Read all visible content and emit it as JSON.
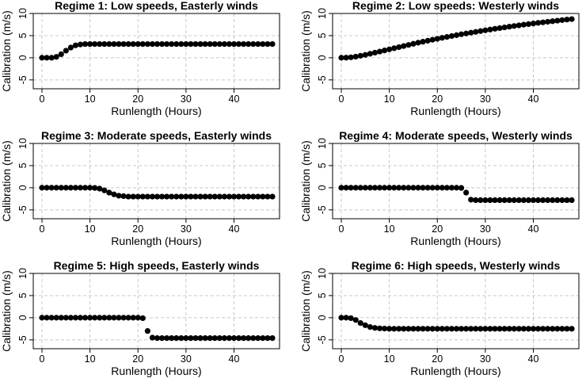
{
  "chart_data": [
    {
      "type": "scatter",
      "title": "Regime 1: Low speeds, Easterly winds",
      "xlabel": "Runlength (Hours)",
      "ylabel": "Calibration (m/s)",
      "xlim": [
        0,
        48
      ],
      "ylim": [
        -7,
        10
      ],
      "xticks": [
        0,
        10,
        20,
        30,
        40
      ],
      "yticks": [
        -5,
        0,
        5,
        10
      ],
      "grid": true,
      "x": [
        0,
        1,
        2,
        3,
        4,
        5,
        6,
        7,
        8,
        9,
        10,
        11,
        12,
        13,
        14,
        15,
        16,
        17,
        18,
        19,
        20,
        21,
        22,
        23,
        24,
        25,
        26,
        27,
        28,
        29,
        30,
        31,
        32,
        33,
        34,
        35,
        36,
        37,
        38,
        39,
        40,
        41,
        42,
        43,
        44,
        45,
        46,
        47,
        48
      ],
      "y": [
        0,
        0,
        0,
        0.2,
        0.8,
        1.6,
        2.3,
        2.8,
        3.0,
        3.1,
        3.1,
        3.1,
        3.1,
        3.1,
        3.1,
        3.1,
        3.1,
        3.1,
        3.1,
        3.1,
        3.1,
        3.1,
        3.1,
        3.1,
        3.1,
        3.1,
        3.1,
        3.1,
        3.1,
        3.1,
        3.1,
        3.1,
        3.1,
        3.1,
        3.1,
        3.1,
        3.1,
        3.1,
        3.1,
        3.1,
        3.1,
        3.1,
        3.1,
        3.1,
        3.1,
        3.1,
        3.1,
        3.1,
        3.1
      ]
    },
    {
      "type": "scatter",
      "title": "Regime 2: Low speeds: Westerly winds",
      "xlabel": "Runlength (Hours)",
      "ylabel": "Calibration (m/s)",
      "xlim": [
        0,
        48
      ],
      "ylim": [
        -7,
        10
      ],
      "xticks": [
        0,
        10,
        20,
        30,
        40
      ],
      "yticks": [
        -5,
        0,
        5,
        10
      ],
      "grid": true,
      "x": [
        0,
        1,
        2,
        3,
        4,
        5,
        6,
        7,
        8,
        9,
        10,
        11,
        12,
        13,
        14,
        15,
        16,
        17,
        18,
        19,
        20,
        21,
        22,
        23,
        24,
        25,
        26,
        27,
        28,
        29,
        30,
        31,
        32,
        33,
        34,
        35,
        36,
        37,
        38,
        39,
        40,
        41,
        42,
        43,
        44,
        45,
        46,
        47,
        48
      ],
      "y": [
        0,
        0.02,
        0.1,
        0.25,
        0.45,
        0.65,
        0.9,
        1.15,
        1.4,
        1.65,
        1.9,
        2.15,
        2.4,
        2.65,
        2.9,
        3.15,
        3.4,
        3.62,
        3.85,
        4.07,
        4.28,
        4.5,
        4.7,
        4.9,
        5.1,
        5.3,
        5.48,
        5.66,
        5.84,
        6.02,
        6.2,
        6.37,
        6.54,
        6.7,
        6.86,
        7.02,
        7.17,
        7.32,
        7.47,
        7.6,
        7.74,
        7.88,
        8.0,
        8.13,
        8.25,
        8.38,
        8.5,
        8.62,
        8.73
      ]
    },
    {
      "type": "scatter",
      "title": "Regime 3: Moderate speeds, Easterly winds",
      "xlabel": "Runlength (Hours)",
      "ylabel": "Calibration (m/s)",
      "xlim": [
        0,
        48
      ],
      "ylim": [
        -7,
        10
      ],
      "xticks": [
        0,
        10,
        20,
        30,
        40
      ],
      "yticks": [
        -5,
        0,
        5,
        10
      ],
      "grid": true,
      "x": [
        0,
        1,
        2,
        3,
        4,
        5,
        6,
        7,
        8,
        9,
        10,
        11,
        12,
        13,
        14,
        15,
        16,
        17,
        18,
        19,
        20,
        21,
        22,
        23,
        24,
        25,
        26,
        27,
        28,
        29,
        30,
        31,
        32,
        33,
        34,
        35,
        36,
        37,
        38,
        39,
        40,
        41,
        42,
        43,
        44,
        45,
        46,
        47,
        48
      ],
      "y": [
        0,
        0,
        0,
        0,
        0,
        0,
        0,
        0,
        0,
        0,
        0,
        -0.05,
        -0.2,
        -0.6,
        -1.1,
        -1.5,
        -1.8,
        -1.9,
        -2.0,
        -2.0,
        -2.0,
        -2.0,
        -2.0,
        -2.0,
        -2.0,
        -2.0,
        -2.0,
        -2.0,
        -2.0,
        -2.0,
        -2.0,
        -2.0,
        -2.0,
        -2.0,
        -2.0,
        -2.0,
        -2.0,
        -2.0,
        -2.0,
        -2.0,
        -2.0,
        -2.0,
        -2.0,
        -2.0,
        -2.0,
        -2.0,
        -2.0,
        -2.0,
        -2.0
      ]
    },
    {
      "type": "scatter",
      "title": "Regime 4: Moderate speeds, Westerly winds",
      "xlabel": "Runlength (Hours)",
      "ylabel": "Calibration (m/s)",
      "xlim": [
        0,
        48
      ],
      "ylim": [
        -7,
        10
      ],
      "xticks": [
        0,
        10,
        20,
        30,
        40
      ],
      "yticks": [
        -5,
        0,
        5,
        10
      ],
      "grid": true,
      "x": [
        0,
        1,
        2,
        3,
        4,
        5,
        6,
        7,
        8,
        9,
        10,
        11,
        12,
        13,
        14,
        15,
        16,
        17,
        18,
        19,
        20,
        21,
        22,
        23,
        24,
        25,
        26,
        27,
        28,
        29,
        30,
        31,
        32,
        33,
        34,
        35,
        36,
        37,
        38,
        39,
        40,
        41,
        42,
        43,
        44,
        45,
        46,
        47,
        48
      ],
      "y": [
        0,
        0,
        0,
        0,
        0,
        0,
        0,
        0,
        0,
        0,
        0,
        0,
        0,
        0,
        0,
        0,
        0,
        0,
        0,
        0,
        0,
        0,
        0,
        0,
        0,
        -0.05,
        -1.1,
        -2.7,
        -2.8,
        -2.8,
        -2.8,
        -2.8,
        -2.8,
        -2.8,
        -2.8,
        -2.8,
        -2.8,
        -2.8,
        -2.8,
        -2.8,
        -2.8,
        -2.8,
        -2.8,
        -2.8,
        -2.8,
        -2.8,
        -2.8,
        -2.8,
        -2.8
      ]
    },
    {
      "type": "scatter",
      "title": "Regime 5: High speeds, Easterly winds",
      "xlabel": "Runlength (Hours)",
      "ylabel": "Calibration (m/s)",
      "xlim": [
        0,
        48
      ],
      "ylim": [
        -7,
        10
      ],
      "xticks": [
        0,
        10,
        20,
        30,
        40
      ],
      "yticks": [
        -5,
        0,
        5,
        10
      ],
      "grid": true,
      "x": [
        0,
        1,
        2,
        3,
        4,
        5,
        6,
        7,
        8,
        9,
        10,
        11,
        12,
        13,
        14,
        15,
        16,
        17,
        18,
        19,
        20,
        21,
        22,
        23,
        24,
        25,
        26,
        27,
        28,
        29,
        30,
        31,
        32,
        33,
        34,
        35,
        36,
        37,
        38,
        39,
        40,
        41,
        42,
        43,
        44,
        45,
        46,
        47,
        48
      ],
      "y": [
        0,
        0,
        0,
        0,
        0,
        0,
        0,
        0,
        0,
        0,
        0,
        0,
        0,
        0,
        0,
        0,
        0,
        0,
        0,
        0,
        0,
        -0.1,
        -3.0,
        -4.5,
        -4.6,
        -4.6,
        -4.6,
        -4.6,
        -4.6,
        -4.6,
        -4.6,
        -4.6,
        -4.6,
        -4.6,
        -4.6,
        -4.6,
        -4.6,
        -4.6,
        -4.6,
        -4.6,
        -4.6,
        -4.6,
        -4.6,
        -4.6,
        -4.6,
        -4.6,
        -4.6,
        -4.6,
        -4.6
      ]
    },
    {
      "type": "scatter",
      "title": "Regime 6: High speeds, Westerly winds",
      "xlabel": "Runlength (Hours)",
      "ylabel": "Calibration (m/s)",
      "xlim": [
        0,
        48
      ],
      "ylim": [
        -7,
        10
      ],
      "xticks": [
        0,
        10,
        20,
        30,
        40
      ],
      "yticks": [
        -5,
        0,
        5,
        10
      ],
      "grid": true,
      "x": [
        0,
        1,
        2,
        3,
        4,
        5,
        6,
        7,
        8,
        9,
        10,
        11,
        12,
        13,
        14,
        15,
        16,
        17,
        18,
        19,
        20,
        21,
        22,
        23,
        24,
        25,
        26,
        27,
        28,
        29,
        30,
        31,
        32,
        33,
        34,
        35,
        36,
        37,
        38,
        39,
        40,
        41,
        42,
        43,
        44,
        45,
        46,
        47,
        48
      ],
      "y": [
        0,
        0,
        -0.1,
        -0.5,
        -1.2,
        -1.7,
        -2.1,
        -2.3,
        -2.4,
        -2.45,
        -2.5,
        -2.5,
        -2.5,
        -2.5,
        -2.5,
        -2.5,
        -2.5,
        -2.5,
        -2.5,
        -2.5,
        -2.5,
        -2.5,
        -2.5,
        -2.5,
        -2.5,
        -2.5,
        -2.5,
        -2.5,
        -2.5,
        -2.5,
        -2.5,
        -2.5,
        -2.5,
        -2.5,
        -2.5,
        -2.5,
        -2.5,
        -2.5,
        -2.5,
        -2.5,
        -2.5,
        -2.5,
        -2.5,
        -2.5,
        -2.5,
        -2.5,
        -2.5,
        -2.5,
        -2.5
      ]
    }
  ]
}
